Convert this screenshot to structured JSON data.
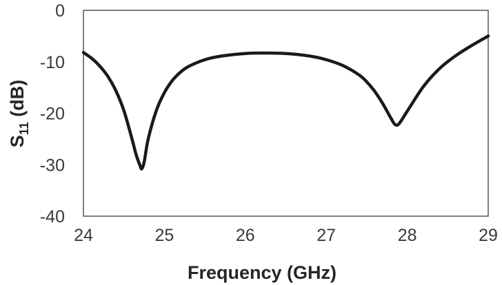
{
  "chart_data": {
    "type": "line",
    "title": "",
    "xlabel": "Frequency (GHz)",
    "ylabel_main": "S",
    "ylabel_sub": "11",
    "ylabel_unit": " (dB)",
    "xlim": [
      24,
      29
    ],
    "ylim": [
      -40,
      0
    ],
    "x_ticks": [
      "24",
      "25",
      "26",
      "27",
      "28",
      "29"
    ],
    "y_ticks": [
      "0",
      "-10",
      "-20",
      "-30",
      "-40"
    ],
    "grid": false,
    "legend": "none",
    "series": [
      {
        "color": "#1a1a1a",
        "x": [
          24.0,
          24.1,
          24.2,
          24.3,
          24.4,
          24.5,
          24.6,
          24.65,
          24.7,
          24.72,
          24.75,
          24.8,
          24.9,
          25.0,
          25.1,
          25.2,
          25.3,
          25.5,
          25.7,
          26.0,
          26.2,
          26.5,
          26.8,
          27.0,
          27.2,
          27.4,
          27.5,
          27.6,
          27.7,
          27.8,
          27.85,
          27.9,
          28.0,
          28.2,
          28.4,
          28.6,
          28.8,
          29.0
        ],
        "y": [
          -8.2,
          -9.3,
          -10.8,
          -12.8,
          -15.6,
          -19.5,
          -25.0,
          -28.0,
          -30.2,
          -30.8,
          -29.5,
          -25.0,
          -19.5,
          -16.0,
          -13.6,
          -12.0,
          -10.9,
          -9.6,
          -8.9,
          -8.4,
          -8.3,
          -8.4,
          -8.9,
          -9.6,
          -10.7,
          -12.5,
          -13.9,
          -15.8,
          -18.2,
          -21.0,
          -22.2,
          -22.0,
          -19.6,
          -14.8,
          -11.3,
          -8.8,
          -6.8,
          -5.0
        ]
      }
    ]
  }
}
